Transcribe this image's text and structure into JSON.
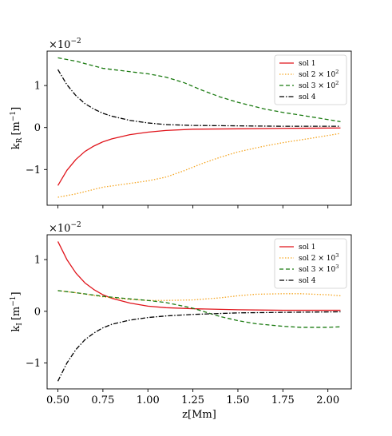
{
  "chart_data": [
    {
      "type": "line",
      "ylabel": "k_R [m^-1]",
      "ylabel_main": "k",
      "ylabel_sub": "R",
      "ylabel_unit": "[m",
      "ylabel_exp": "−1",
      "ylabel_close": "]",
      "offset_text": "×10",
      "offset_exp": "−2",
      "xlim": [
        0.44,
        2.13
      ],
      "ylim": [
        -1.85,
        1.82
      ],
      "yticks": [
        -1,
        0,
        1
      ],
      "ytick_labels": [
        "−1",
        "0",
        "1"
      ],
      "legend_position": "top-right",
      "series": [
        {
          "name": "sol 1",
          "color": "#e0141b",
          "dash": "",
          "x": [
            0.5,
            0.55,
            0.6,
            0.65,
            0.7,
            0.75,
            0.8,
            0.9,
            1.0,
            1.1,
            1.25,
            1.5,
            1.75,
            2.07
          ],
          "y": [
            -1.38,
            -1.02,
            -0.76,
            -0.57,
            -0.44,
            -0.34,
            -0.27,
            -0.17,
            -0.11,
            -0.07,
            -0.04,
            -0.03,
            -0.02,
            -0.01
          ]
        },
        {
          "name": "sol 2 × 10",
          "name_exp": "2",
          "color": "#f5a623",
          "dash": "1.5,2",
          "x": [
            0.5,
            0.6,
            0.75,
            0.9,
            1.0,
            1.1,
            1.2,
            1.3,
            1.4,
            1.5,
            1.65,
            1.75,
            1.9,
            2.07
          ],
          "y": [
            -1.66,
            -1.58,
            -1.42,
            -1.33,
            -1.27,
            -1.18,
            -1.03,
            -0.86,
            -0.71,
            -0.58,
            -0.44,
            -0.36,
            -0.26,
            -0.14
          ]
        },
        {
          "name": "sol 3 × 10",
          "name_exp": "2",
          "color": "#1a7a10",
          "dash": "5,3",
          "x": [
            0.5,
            0.6,
            0.75,
            0.9,
            1.0,
            1.1,
            1.2,
            1.3,
            1.4,
            1.5,
            1.65,
            1.75,
            1.9,
            2.07
          ],
          "y": [
            1.66,
            1.58,
            1.41,
            1.33,
            1.28,
            1.2,
            1.07,
            0.89,
            0.73,
            0.6,
            0.44,
            0.36,
            0.26,
            0.14
          ]
        },
        {
          "name": "sol 4",
          "color": "#000000",
          "dash": "6,2,1.5,2",
          "x": [
            0.5,
            0.55,
            0.6,
            0.65,
            0.7,
            0.75,
            0.8,
            0.9,
            1.0,
            1.1,
            1.25,
            1.5,
            1.75,
            2.07
          ],
          "y": [
            1.38,
            1.02,
            0.76,
            0.57,
            0.44,
            0.34,
            0.27,
            0.17,
            0.11,
            0.07,
            0.05,
            0.04,
            0.03,
            0.03
          ]
        }
      ]
    },
    {
      "type": "line",
      "xlabel": "z[Mm]",
      "ylabel": "k_I [m^-1]",
      "ylabel_main": "k",
      "ylabel_sub": "I",
      "ylabel_unit": "[m",
      "ylabel_exp": "−1",
      "ylabel_close": "]",
      "offset_text": "×10",
      "offset_exp": "−2",
      "xlim": [
        0.44,
        2.13
      ],
      "ylim": [
        -1.5,
        1.48
      ],
      "xticks": [
        0.5,
        0.75,
        1.0,
        1.25,
        1.5,
        1.75,
        2.0
      ],
      "xtick_labels": [
        "0.50",
        "0.75",
        "1.00",
        "1.25",
        "1.50",
        "1.75",
        "2.00"
      ],
      "yticks": [
        -1,
        0,
        1
      ],
      "ytick_labels": [
        "−1",
        "0",
        "1"
      ],
      "legend_position": "top-right",
      "series": [
        {
          "name": "sol 1",
          "color": "#e0141b",
          "dash": "",
          "x": [
            0.5,
            0.55,
            0.6,
            0.65,
            0.7,
            0.75,
            0.8,
            0.9,
            1.0,
            1.1,
            1.25,
            1.5,
            1.75,
            2.07
          ],
          "y": [
            1.35,
            1.0,
            0.74,
            0.55,
            0.42,
            0.32,
            0.25,
            0.16,
            0.1,
            0.07,
            0.05,
            0.03,
            0.02,
            0.02
          ]
        },
        {
          "name": "sol 2 × 10",
          "name_exp": "3",
          "color": "#f5a623",
          "dash": "1.5,2",
          "x": [
            0.5,
            0.6,
            0.75,
            0.9,
            1.0,
            1.1,
            1.25,
            1.4,
            1.5,
            1.6,
            1.75,
            1.85,
            2.0,
            2.07
          ],
          "y": [
            0.4,
            0.36,
            0.28,
            0.23,
            0.21,
            0.21,
            0.22,
            0.26,
            0.3,
            0.33,
            0.34,
            0.34,
            0.32,
            0.3
          ]
        },
        {
          "name": "sol 3 × 10",
          "name_exp": "3",
          "color": "#1a7a10",
          "dash": "5,3",
          "x": [
            0.5,
            0.6,
            0.75,
            0.9,
            1.0,
            1.1,
            1.25,
            1.4,
            1.5,
            1.6,
            1.75,
            1.85,
            2.0,
            2.07
          ],
          "y": [
            0.4,
            0.36,
            0.29,
            0.24,
            0.21,
            0.17,
            0.06,
            -0.1,
            -0.18,
            -0.24,
            -0.29,
            -0.31,
            -0.31,
            -0.3
          ]
        },
        {
          "name": "sol 4",
          "color": "#000000",
          "dash": "6,2,1.5,2",
          "x": [
            0.5,
            0.55,
            0.6,
            0.65,
            0.7,
            0.75,
            0.8,
            0.9,
            1.0,
            1.1,
            1.25,
            1.5,
            1.75,
            2.07
          ],
          "y": [
            -1.35,
            -1.0,
            -0.74,
            -0.55,
            -0.42,
            -0.32,
            -0.25,
            -0.17,
            -0.12,
            -0.09,
            -0.06,
            -0.03,
            -0.02,
            -0.01
          ]
        }
      ]
    }
  ]
}
